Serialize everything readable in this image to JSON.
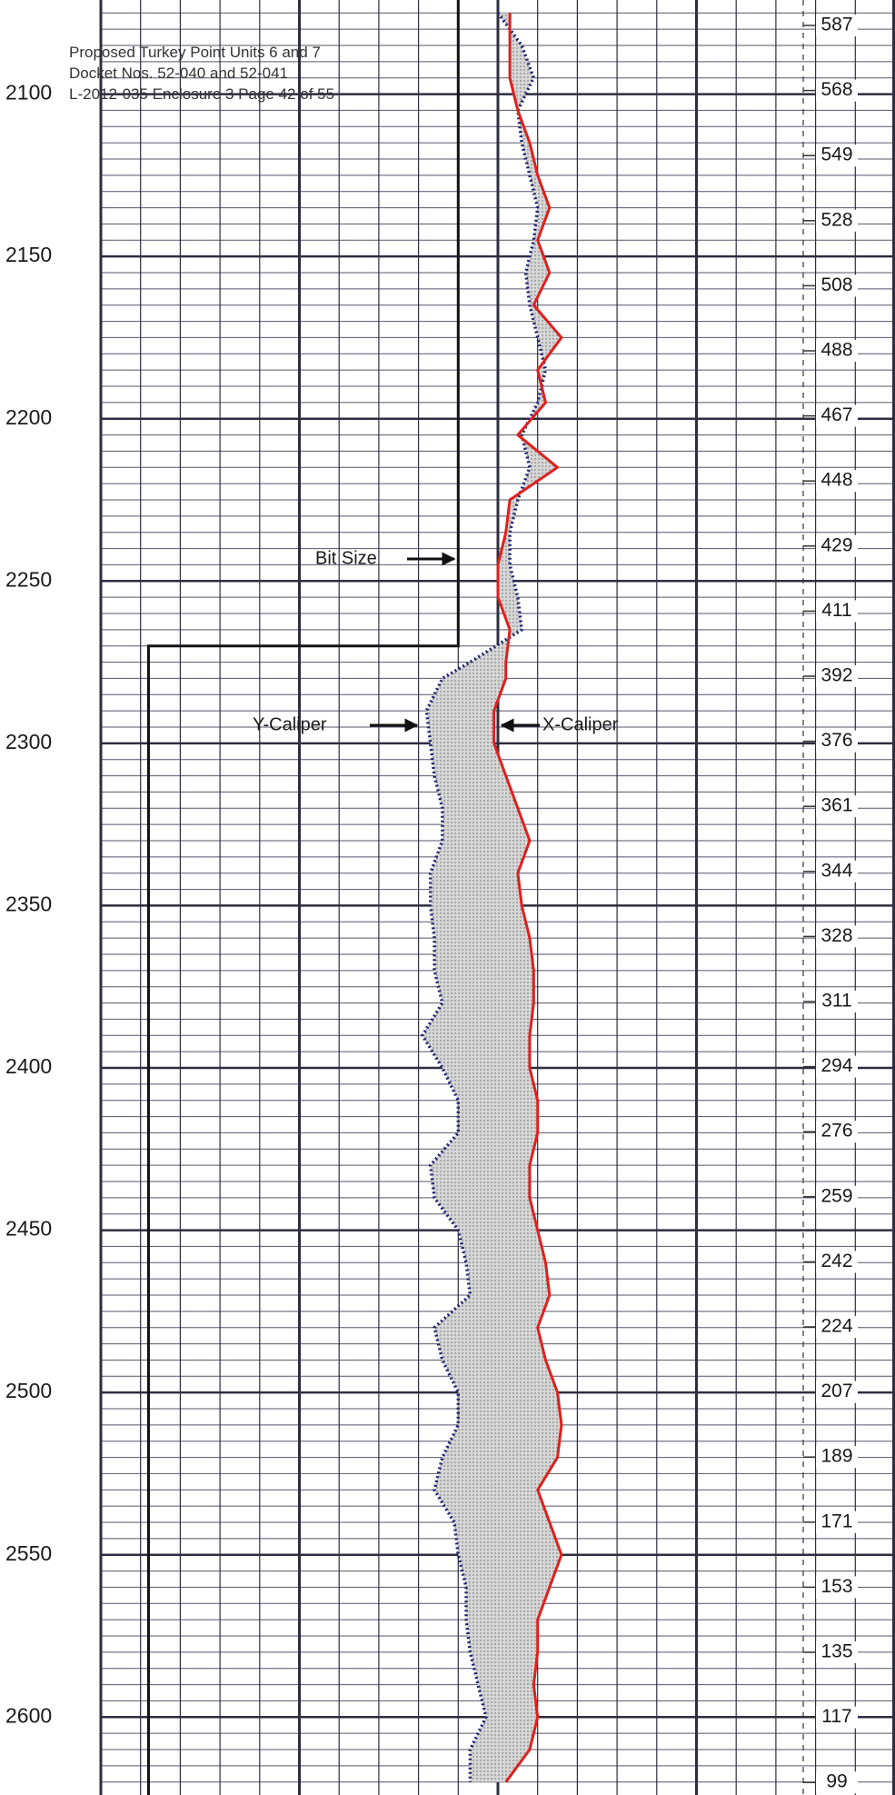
{
  "header": {
    "lines": [
      "Proposed Turkey Point Units 6 and 7",
      "Docket Nos. 52-040 and 52-041",
      "L-2012-035 Enclosure 3 Page 42 of 55"
    ]
  },
  "chart_data": {
    "type": "line",
    "depth": [
      2075,
      2085,
      2095,
      2105,
      2115,
      2125,
      2135,
      2145,
      2155,
      2165,
      2175,
      2185,
      2195,
      2205,
      2215,
      2225,
      2235,
      2245,
      2255,
      2265,
      2275,
      2280,
      2290,
      2300,
      2310,
      2320,
      2330,
      2340,
      2350,
      2360,
      2370,
      2380,
      2390,
      2400,
      2410,
      2420,
      2430,
      2440,
      2450,
      2460,
      2470,
      2480,
      2490,
      2500,
      2510,
      2520,
      2530,
      2540,
      2550,
      2560,
      2570,
      2580,
      2590,
      2600,
      2610,
      2620
    ],
    "series": [
      {
        "name": "X-Caliper",
        "color": "#e0201c",
        "style": "solid",
        "values": [
          10.3,
          10.3,
          10.3,
          10.5,
          10.8,
          11.0,
          11.3,
          11.0,
          11.3,
          10.9,
          11.6,
          11.0,
          11.2,
          10.5,
          11.5,
          10.3,
          10.2,
          10.0,
          10.0,
          10.3,
          10.2,
          10.2,
          9.9,
          9.9,
          10.2,
          10.5,
          10.8,
          10.5,
          10.6,
          10.8,
          10.9,
          10.9,
          10.8,
          10.8,
          11.0,
          11.0,
          10.8,
          10.8,
          11.0,
          11.2,
          11.3,
          11.0,
          11.2,
          11.5,
          11.6,
          11.5,
          11.0,
          11.3,
          11.6,
          11.3,
          11.0,
          11.0,
          10.9,
          11.0,
          10.8,
          10.2
        ]
      },
      {
        "name": "Y-Caliper",
        "color": "#1c2270",
        "style": "dotted",
        "values": [
          10.0,
          10.6,
          10.9,
          10.5,
          10.6,
          10.8,
          11.0,
          10.9,
          10.7,
          10.8,
          11.0,
          11.2,
          11.0,
          10.6,
          10.8,
          10.5,
          10.3,
          10.3,
          10.5,
          10.6,
          9.3,
          8.6,
          8.2,
          8.3,
          8.4,
          8.6,
          8.6,
          8.3,
          8.3,
          8.4,
          8.4,
          8.6,
          8.1,
          8.6,
          9.0,
          9.0,
          8.3,
          8.4,
          9.0,
          9.2,
          9.3,
          8.4,
          8.6,
          9.0,
          9.0,
          8.6,
          8.4,
          8.9,
          9.0,
          9.2,
          9.2,
          9.3,
          9.5,
          9.7,
          9.3,
          9.3
        ]
      }
    ],
    "bit_size": {
      "name": "Bit Size",
      "color": "#111111",
      "depth": [
        2071,
        2270,
        2270,
        2624
      ],
      "values": [
        9.0,
        9.0,
        1.2,
        1.2
      ]
    },
    "xlim": [
      0,
      20
    ],
    "xticks": [
      0,
      1,
      2,
      3,
      4,
      5,
      6,
      7,
      8,
      9,
      10,
      11,
      12,
      13,
      14,
      15,
      16,
      17,
      18,
      19,
      20
    ],
    "ylim": [
      2071,
      2624
    ],
    "yticks": [
      2100,
      2150,
      2200,
      2250,
      2300,
      2350,
      2400,
      2450,
      2500,
      2550,
      2600
    ],
    "y_minor_step": 5,
    "depth_index_labels": [
      587,
      568,
      549,
      528,
      508,
      488,
      467,
      448,
      429,
      411,
      392,
      376,
      361,
      344,
      328,
      311,
      294,
      276,
      259,
      242,
      224,
      207,
      189,
      171,
      153,
      135,
      117,
      99
    ],
    "fill_between": true,
    "grid": true
  }
}
